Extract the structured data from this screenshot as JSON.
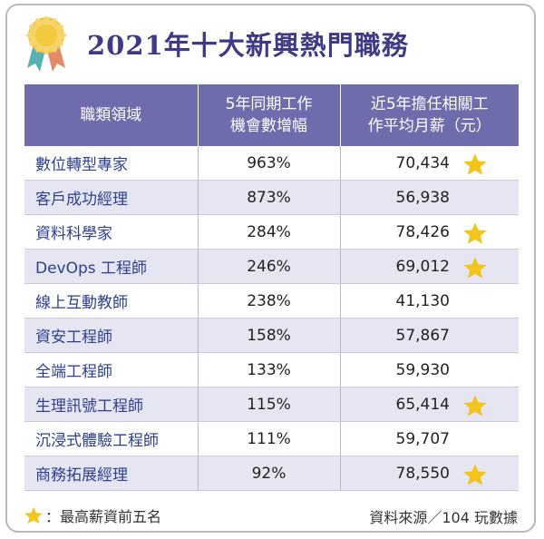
{
  "title": "2021年十大新興熱門職務",
  "headers": [
    "職類領域",
    "5年同期工作\n機會數增幅",
    "近5年擔任相關工\n作平均月薪（元）"
  ],
  "rows": [
    {
      "job": "數位轉型專家",
      "growth": "963%",
      "salary": "70,434",
      "top5": true
    },
    {
      "job": "客戶成功經理",
      "growth": "873%",
      "salary": "56,938",
      "top5": false
    },
    {
      "job": "資料科學家",
      "growth": "284%",
      "salary": "78,426",
      "top5": true
    },
    {
      "job": "DevOps 工程師",
      "growth": "246%",
      "salary": "69,012",
      "top5": true
    },
    {
      "job": "線上互動教師",
      "growth": "238%",
      "salary": "41,130",
      "top5": false
    },
    {
      "job": "資安工程師",
      "growth": "158%",
      "salary": "57,867",
      "top5": false
    },
    {
      "job": "全端工程師",
      "growth": "133%",
      "salary": "59,930",
      "top5": false
    },
    {
      "job": "生理訊號工程師",
      "growth": "115%",
      "salary": "65,414",
      "top5": true
    },
    {
      "job": "沉浸式體驗工程師",
      "growth": "111%",
      "salary": "59,707",
      "top5": false
    },
    {
      "job": "商務拓展經理",
      "growth": "92%",
      "salary": "78,550",
      "top5": true
    }
  ],
  "legend": "：最高薪資前五名",
  "source": "資料來源／104 玩數據",
  "colors": {
    "header_bg": "#6f6cae",
    "title": "#3f3a86",
    "star": "#f3c41a",
    "stripe": "#e6e5f2"
  }
}
